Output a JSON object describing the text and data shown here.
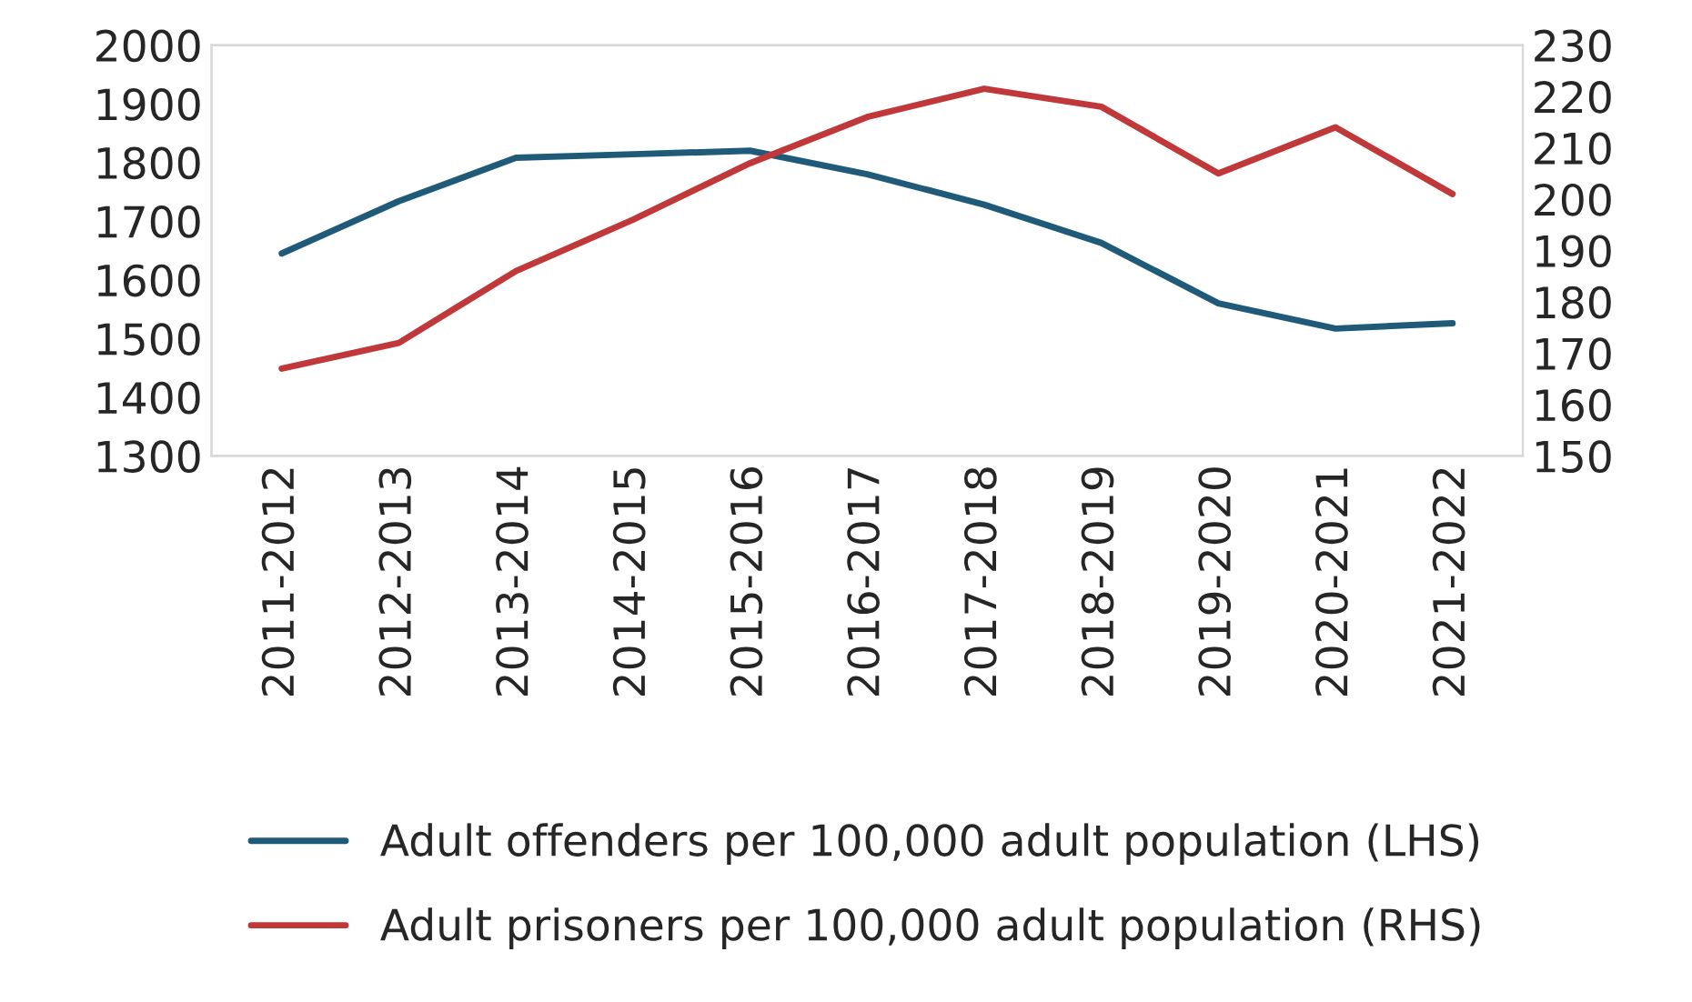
{
  "chart_data": {
    "type": "line",
    "categories": [
      "2011-2012",
      "2012-2013",
      "2013-2014",
      "2014-2015",
      "2015-2016",
      "2016-2017",
      "2017-2018",
      "2018-2019",
      "2019-2020",
      "2020-2021",
      "2021-2022"
    ],
    "series": [
      {
        "name": "Adult offenders per 100,000 adult population (LHS)",
        "color": "#1f5b78",
        "values": [
          1645,
          1734,
          1808,
          1814,
          1820,
          1780,
          1728,
          1663,
          1560,
          1517,
          1526
        ]
      },
      {
        "name": "Adult prisoners per 100,000 adult population (RHS)",
        "color": "#c0383a",
        "axis": "y2",
        "values": [
          167,
          172,
          186,
          196,
          207,
          216,
          221.5,
          218,
          205,
          214,
          201
        ]
      }
    ],
    "ylim": [
      1300,
      2000
    ],
    "yticks": [
      1300,
      1400,
      1500,
      1600,
      1700,
      1800,
      1900,
      2000
    ],
    "y2lim": [
      150,
      230
    ],
    "y2ticks": [
      150,
      160,
      170,
      180,
      190,
      200,
      210,
      220,
      230
    ],
    "grid": false,
    "legend": "bottom"
  }
}
